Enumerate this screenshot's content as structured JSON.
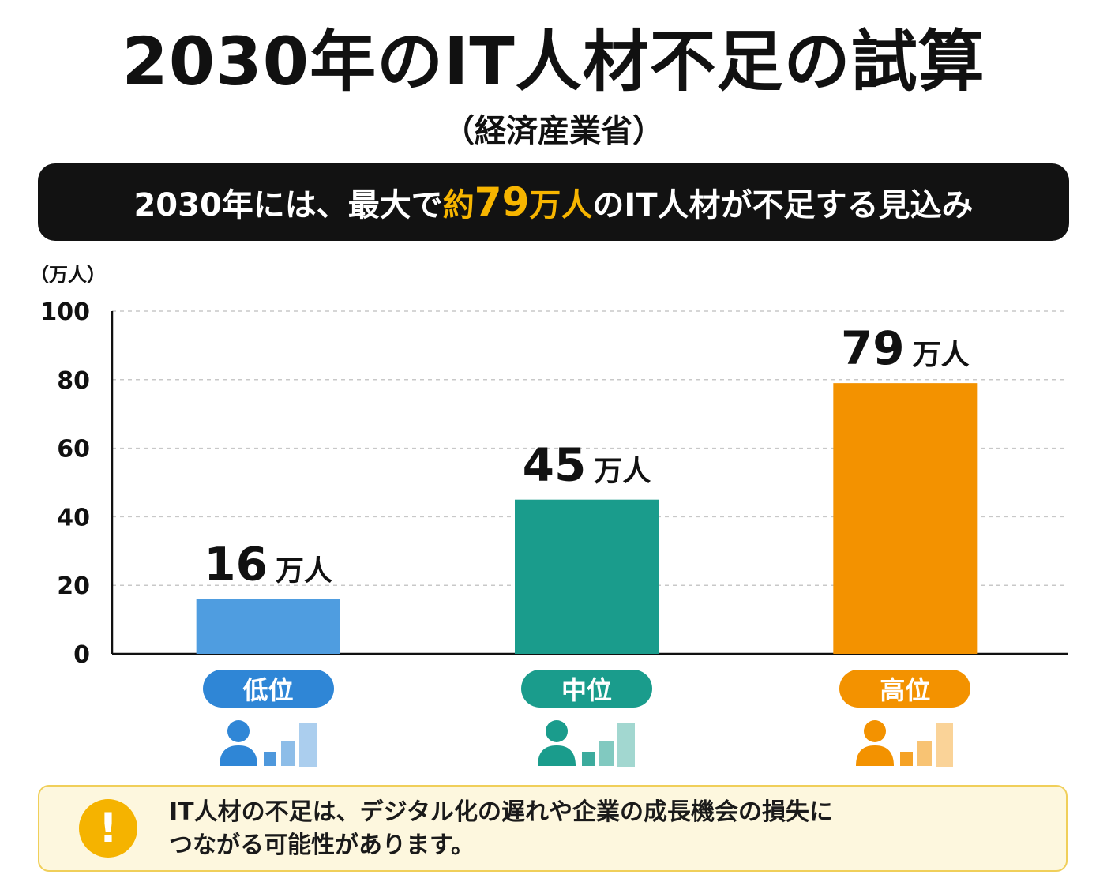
{
  "title": "2030年のIT人材不足の試算",
  "subtitle": "（経済産業省）",
  "banner": {
    "prefix": "2030年には、最大で",
    "highlight_pre": "約",
    "highlight_num": "79",
    "highlight_unit": "万人",
    "suffix": "のIT人材が不足する見込み"
  },
  "notice": {
    "icon": "exclamation-icon",
    "text_line1": "IT人材の不足は、デジタル化の遅れや企業の成長機会の損失に",
    "text_line2": "つながる可能性があります。"
  },
  "chart_data": {
    "type": "bar",
    "unit_label": "（万人）",
    "ylim": [
      0,
      100
    ],
    "yticks": [
      0,
      20,
      40,
      60,
      80,
      100
    ],
    "grid": true,
    "categories": [
      "低位",
      "中位",
      "高位"
    ],
    "values": [
      16,
      45,
      79
    ],
    "value_labels": [
      "16",
      "45",
      "79"
    ],
    "value_unit": "万人",
    "colors": [
      "#4f9de0",
      "#1a9c8c",
      "#f39200"
    ],
    "pill_colors": [
      "#2f86d6",
      "#1a9c8c",
      "#f39200"
    ],
    "icons": [
      "person-bars-icon",
      "person-bars-icon",
      "person-bars-icon"
    ]
  }
}
